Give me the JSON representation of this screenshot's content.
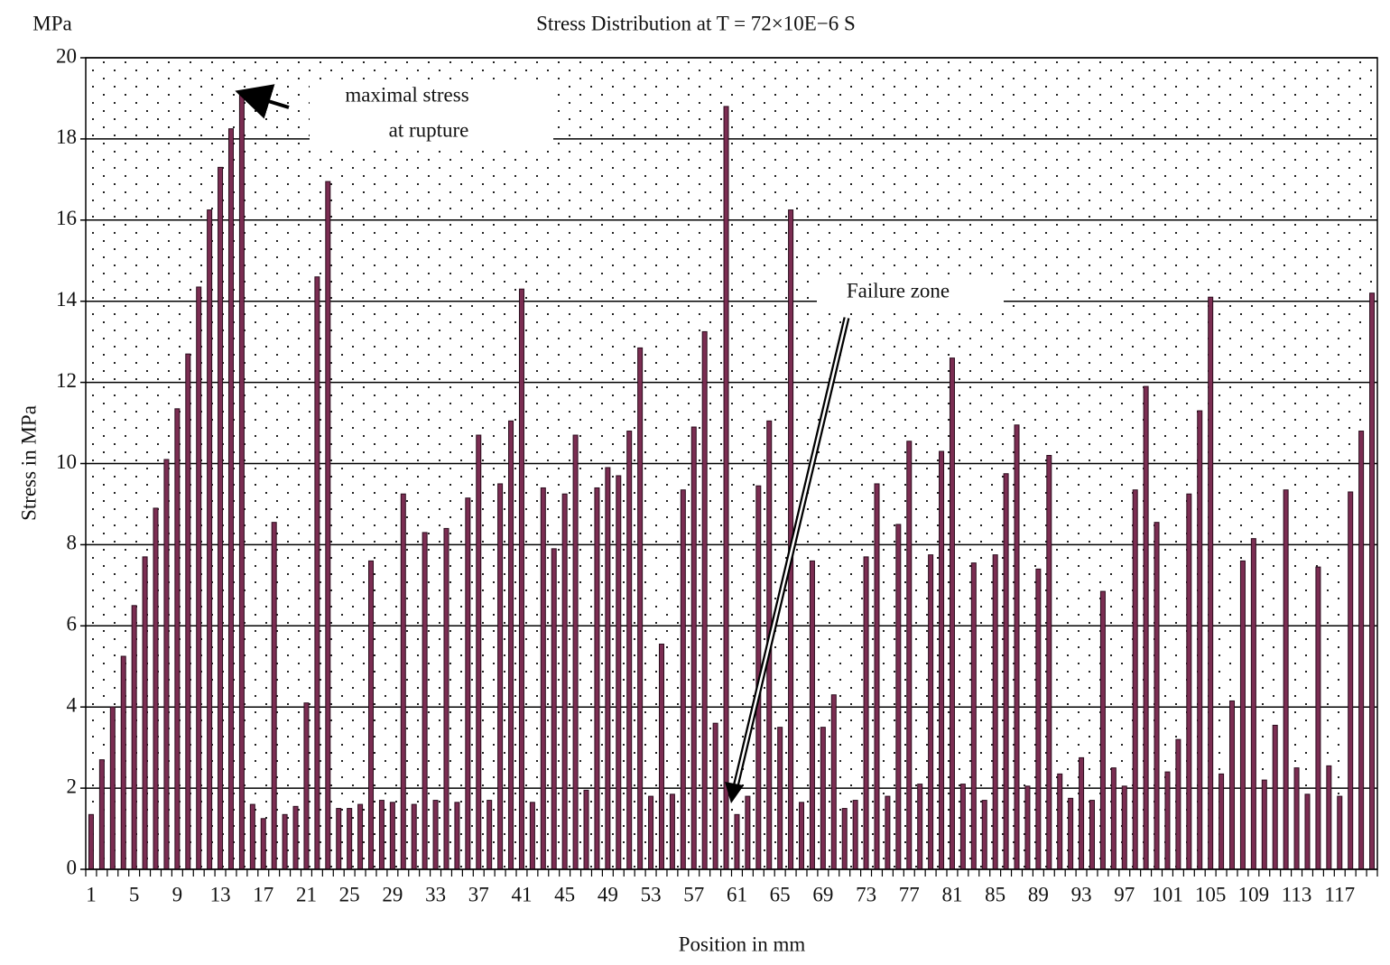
{
  "chart_data": {
    "type": "bar",
    "title": "Stress Distribution at T = 72×10E−6 S",
    "unit_label": "MPa",
    "y_label": "Stress in MPa",
    "x_label": "Position in mm",
    "annotations": [
      "maximal stress",
      "at rupture",
      "Failure zone"
    ],
    "color": "#7b2d52",
    "grid": true,
    "ylim": [
      0,
      20
    ],
    "yticks": [
      0,
      2,
      4,
      6,
      8,
      10,
      12,
      14,
      16,
      18,
      20
    ],
    "categories": [
      "1",
      null,
      null,
      null,
      "5",
      null,
      null,
      null,
      "9",
      null,
      null,
      null,
      "13",
      null,
      null,
      null,
      "17",
      null,
      null,
      null,
      "21",
      null,
      null,
      null,
      "25",
      null,
      null,
      null,
      "29",
      null,
      null,
      null,
      "33",
      null,
      null,
      null,
      "37",
      null,
      null,
      null,
      "41",
      null,
      null,
      null,
      "45",
      null,
      null,
      null,
      "49",
      null,
      null,
      null,
      "53",
      null,
      null,
      null,
      "57",
      null,
      null,
      null,
      "61",
      null,
      null,
      null,
      "65",
      null,
      null,
      null,
      "69",
      null,
      null,
      null,
      "73",
      null,
      null,
      null,
      "77",
      null,
      null,
      null,
      "81",
      null,
      null,
      null,
      "85",
      null,
      null,
      null,
      "89",
      null,
      null,
      null,
      "93",
      null,
      null,
      null,
      "97",
      null,
      null,
      null,
      "101",
      null,
      null,
      null,
      "105",
      null,
      null,
      null,
      "109",
      null,
      null,
      null,
      "113",
      null,
      null,
      null,
      "117",
      null,
      null,
      null
    ],
    "values": [
      1.35,
      2.7,
      4.0,
      5.25,
      6.5,
      7.7,
      8.9,
      10.1,
      11.35,
      12.7,
      14.35,
      16.25,
      17.3,
      18.25,
      19.15,
      1.6,
      1.25,
      8.55,
      1.35,
      1.55,
      4.1,
      14.6,
      16.95,
      1.5,
      1.5,
      1.6,
      7.6,
      1.7,
      1.65,
      9.25,
      1.6,
      8.3,
      1.7,
      8.4,
      1.65,
      9.15,
      10.7,
      1.7,
      9.5,
      11.05,
      14.3,
      1.65,
      9.4,
      7.9,
      9.25,
      10.7,
      1.95,
      9.4,
      9.9,
      9.7,
      10.8,
      12.85,
      1.8,
      5.55,
      1.85,
      9.35,
      10.9,
      13.25,
      3.6,
      18.8,
      1.35,
      1.8,
      9.45,
      11.05,
      3.5,
      16.25,
      1.65,
      7.6,
      3.5,
      4.3,
      1.5,
      1.7,
      7.7,
      9.5,
      1.8,
      8.5,
      10.55,
      2.1,
      7.75,
      10.3,
      12.6,
      2.1,
      7.55,
      1.7,
      7.75,
      9.75,
      10.95,
      2.05,
      7.4,
      10.2,
      2.35,
      1.75,
      2.75,
      1.7,
      6.85,
      2.5,
      2.05,
      9.35,
      11.9,
      8.55,
      2.4,
      3.2,
      9.25,
      11.3,
      14.1,
      2.35,
      4.15,
      7.6,
      8.15,
      2.2,
      3.55,
      9.35,
      2.5,
      1.85,
      7.45,
      2.55,
      1.8,
      9.3,
      10.8,
      14.2
    ]
  }
}
